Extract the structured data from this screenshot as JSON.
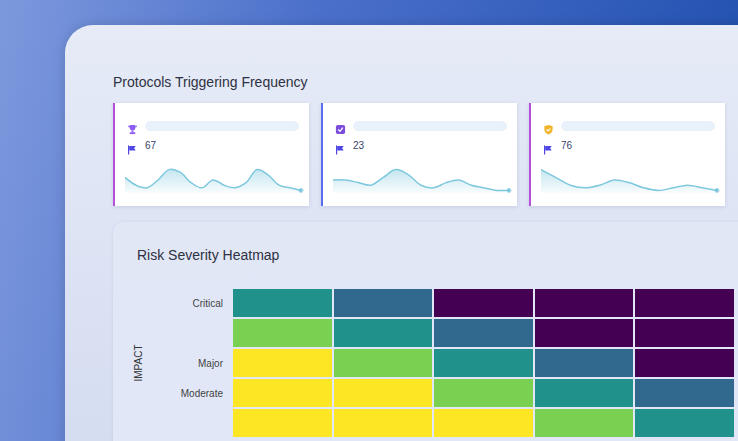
{
  "section_title": "Protocols Triggering Frequency",
  "cards": [
    {
      "value": 67,
      "sparkline": {
        "values": [
          6,
          3,
          2,
          5,
          9,
          8,
          4,
          2,
          5,
          3,
          2,
          4,
          9,
          7,
          3,
          2,
          1
        ],
        "ylim": [
          0,
          10
        ]
      }
    },
    {
      "value": 23,
      "sparkline": {
        "values": [
          5,
          5,
          4,
          3,
          6,
          9,
          7,
          3,
          2,
          4,
          5,
          3,
          2,
          1,
          1
        ],
        "ylim": [
          0,
          10
        ]
      }
    },
    {
      "value": 76,
      "sparkline": {
        "values": [
          9,
          6,
          3,
          2,
          3,
          5,
          4,
          2,
          1,
          2,
          3,
          2,
          1
        ],
        "ylim": [
          0,
          10
        ]
      }
    }
  ],
  "chart_data": {
    "type": "heatmap",
    "title": "Risk Severity Heatmap",
    "y_label": "IMPACT",
    "y_categories": [
      "Critical",
      null,
      "Major",
      "Moderate",
      null
    ],
    "x_categories": [
      null,
      null,
      null,
      null,
      null
    ],
    "cells": [
      [
        3,
        4,
        5,
        5,
        5
      ],
      [
        2,
        3,
        4,
        5,
        5
      ],
      [
        1,
        2,
        3,
        4,
        5
      ],
      [
        1,
        1,
        2,
        3,
        4
      ],
      [
        1,
        1,
        1,
        2,
        3
      ]
    ],
    "zlim": [
      1,
      5
    ],
    "tick_labels": "y"
  }
}
